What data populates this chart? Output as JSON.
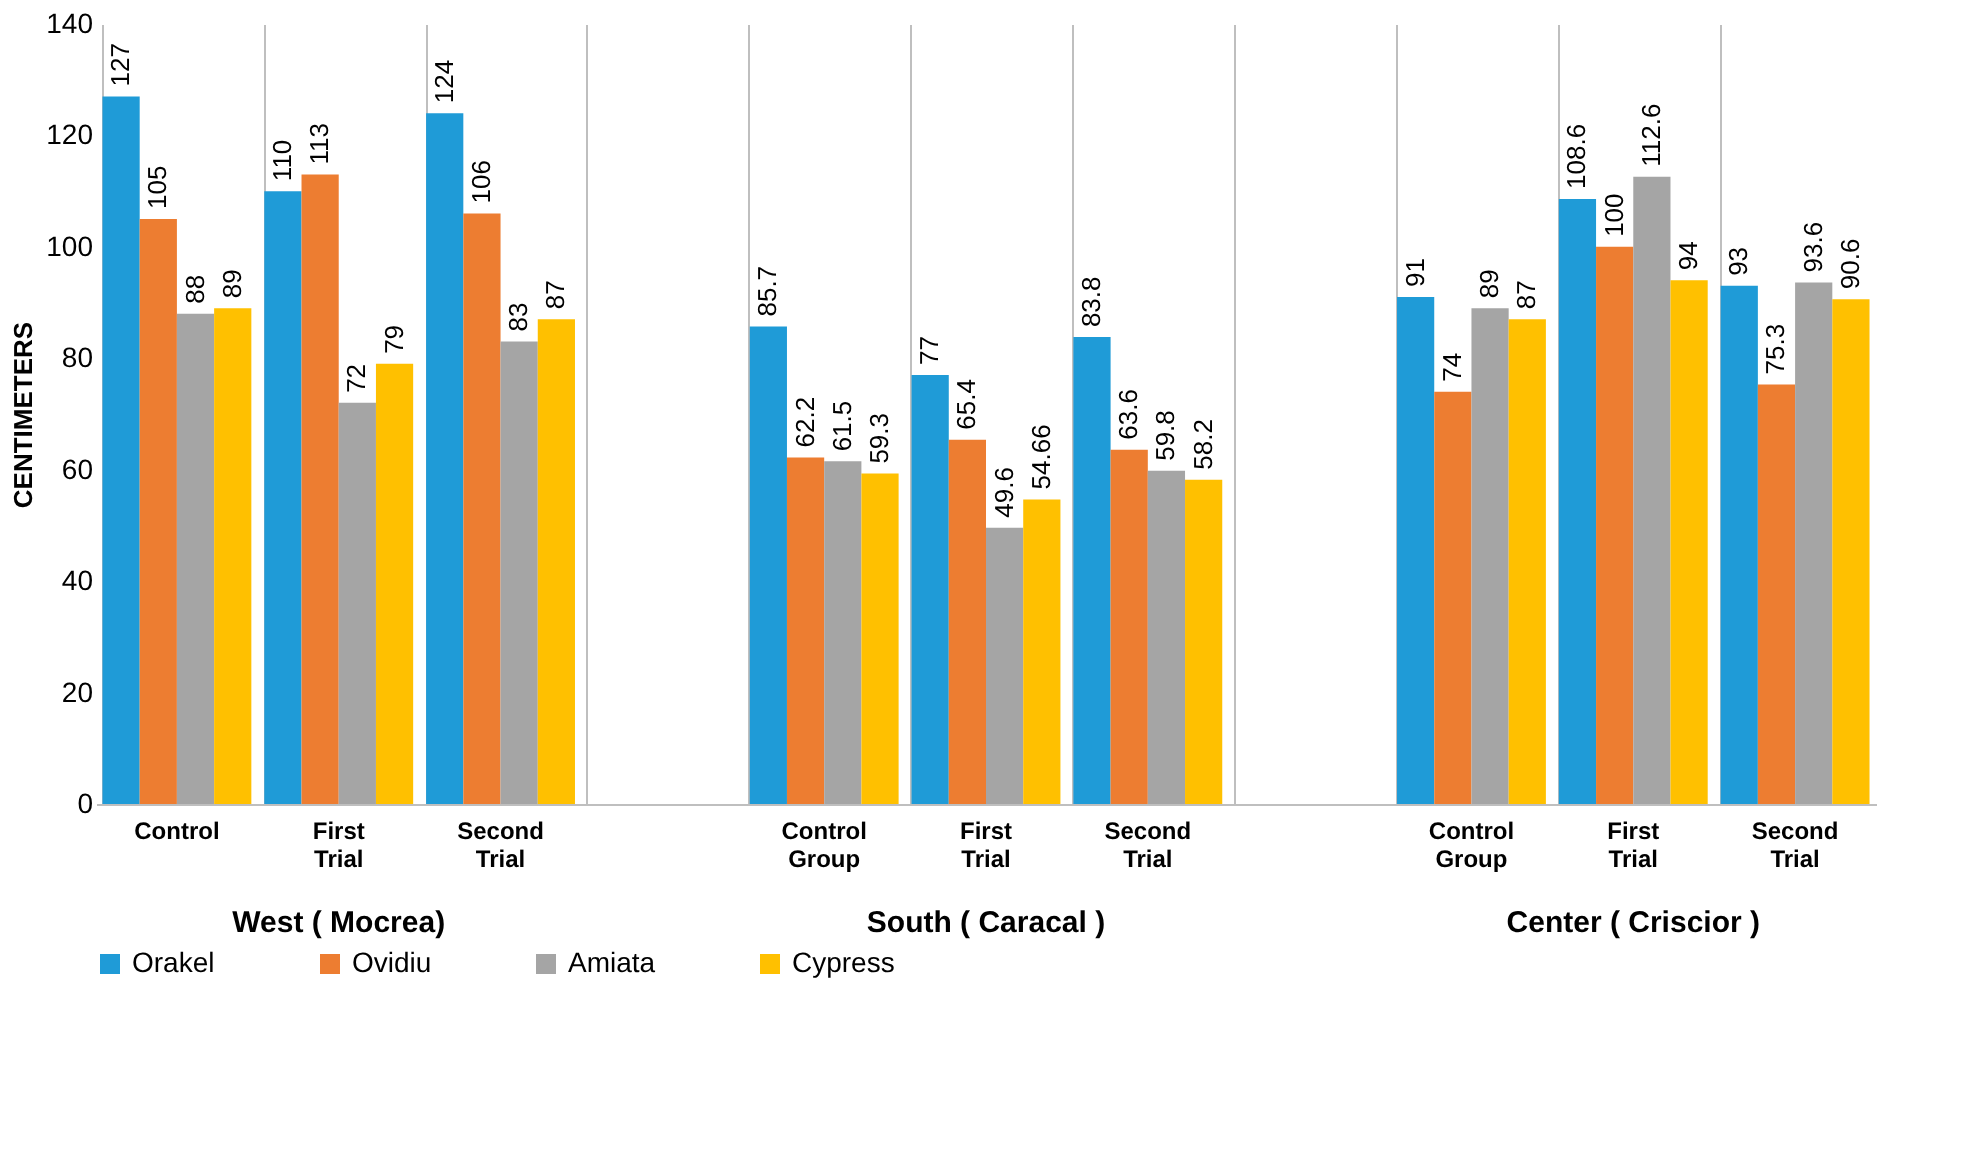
{
  "chart_data": {
    "type": "bar",
    "ylabel": "CENTIMETERS",
    "categories": [
      "Control",
      "First Trial",
      "Second Trial",
      null,
      "Control Group",
      "First Trial",
      "Second Trial",
      null,
      "Control Group",
      "First Trial",
      "Second Trial"
    ],
    "series": [
      {
        "name": "Orakel",
        "color": "#1f9bd7",
        "values": [
          127,
          110,
          124,
          null,
          85.7,
          77,
          83.8,
          null,
          91,
          108.6,
          93
        ]
      },
      {
        "name": "Ovidiu",
        "color": "#ed7d31",
        "values": [
          105,
          113,
          106,
          null,
          62.2,
          65.4,
          63.6,
          null,
          74,
          100,
          75.3
        ]
      },
      {
        "name": "Amiata",
        "color": "#a5a5a5",
        "values": [
          88,
          72,
          83,
          null,
          61.5,
          49.6,
          59.8,
          null,
          89,
          112.6,
          93.6
        ]
      },
      {
        "name": "Cypress",
        "color": "#ffc000",
        "values": [
          89,
          79,
          87,
          null,
          59.3,
          54.66,
          58.2,
          null,
          87,
          94,
          90.6
        ]
      }
    ],
    "ylim": [
      0,
      140
    ],
    "yticks": [
      0,
      20,
      40,
      60,
      80,
      100,
      120,
      140
    ],
    "annotations": [
      "West ( Mocrea)",
      "South ( Caracal )",
      "Center ( Criscior )"
    ],
    "data_labels": true,
    "grid": "x",
    "legend": "bottom"
  }
}
